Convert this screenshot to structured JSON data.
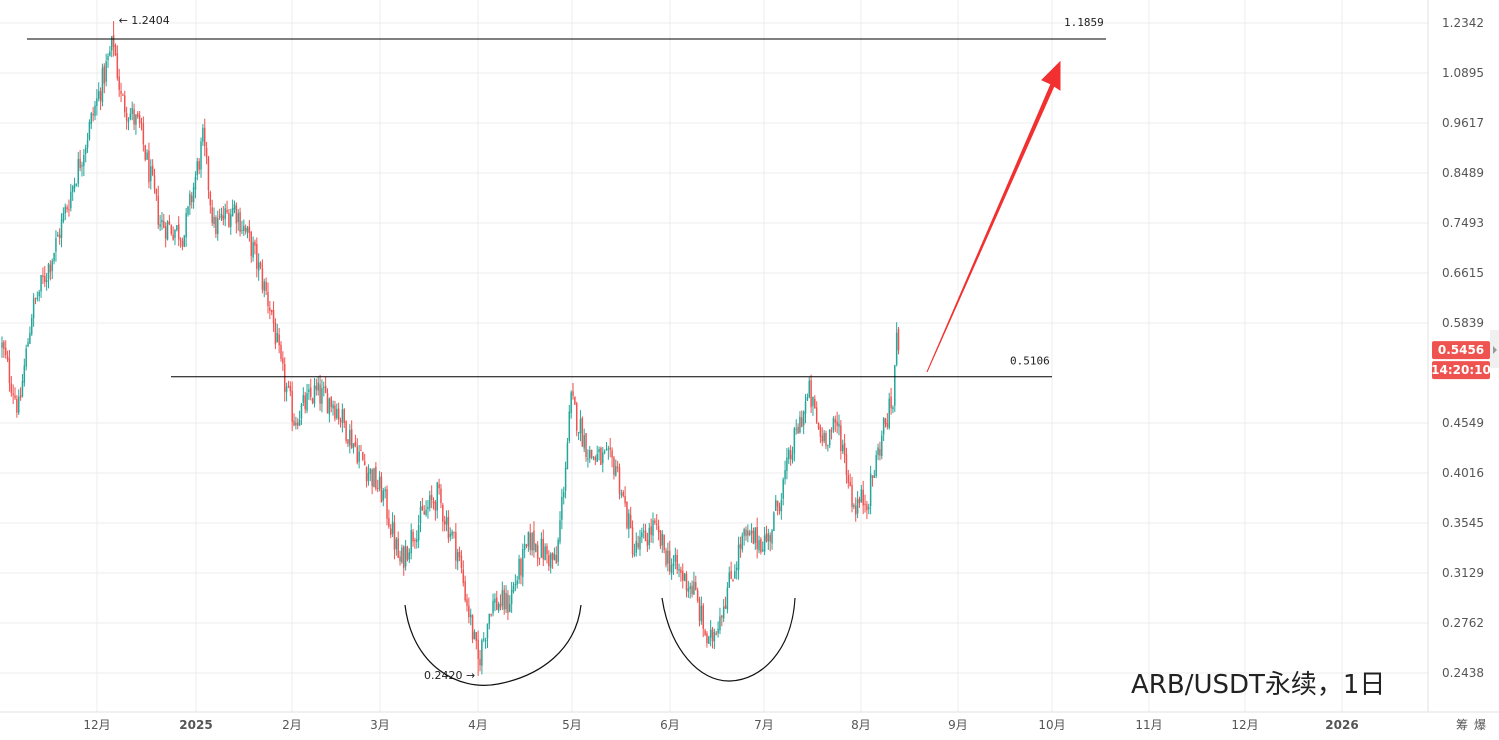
{
  "chart_data": {
    "type": "candlestick",
    "title": "ARB/USDT永续，1日",
    "y_axis": {
      "scale": "log",
      "range": [
        0.225,
        1.29
      ],
      "tick_labels": [
        "1.2342",
        "1.0895",
        "0.9617",
        "0.8489",
        "0.7493",
        "0.6615",
        "0.5839",
        "0.4549",
        "0.4016",
        "0.3545",
        "0.3129",
        "0.2762",
        "0.2438"
      ]
    },
    "x_axis": {
      "tick_labels": [
        "12月",
        "2025",
        "2月",
        "3月",
        "4月",
        "5月",
        "6月",
        "7月",
        "8月",
        "9月",
        "10月",
        "11月",
        "12月",
        "2026",
        "筹",
        "爆"
      ]
    },
    "grid": true,
    "current_price": "0.5456",
    "countdown": "14:20:10",
    "colors": {
      "up": "#26a69a",
      "down": "#ef5350",
      "line": "#000000",
      "arrow": "#f23030",
      "badge": "#ef5350"
    },
    "anchors": [
      {
        "i": 0,
        "v": 0.55
      },
      {
        "i": 9,
        "v": 0.47
      },
      {
        "i": 16,
        "v": 0.6
      },
      {
        "i": 28,
        "v": 0.7
      },
      {
        "i": 45,
        "v": 0.92
      },
      {
        "i": 60,
        "v": 1.18
      },
      {
        "i": 64,
        "v": 1.02
      },
      {
        "i": 74,
        "v": 0.95
      },
      {
        "i": 85,
        "v": 0.75
      },
      {
        "i": 98,
        "v": 0.73
      },
      {
        "i": 108,
        "v": 0.92
      },
      {
        "i": 114,
        "v": 0.74
      },
      {
        "i": 125,
        "v": 0.78
      },
      {
        "i": 135,
        "v": 0.7
      },
      {
        "i": 145,
        "v": 0.6
      },
      {
        "i": 150,
        "v": 0.52
      },
      {
        "i": 157,
        "v": 0.46
      },
      {
        "i": 168,
        "v": 0.49
      },
      {
        "i": 178,
        "v": 0.48
      },
      {
        "i": 195,
        "v": 0.41
      },
      {
        "i": 205,
        "v": 0.38
      },
      {
        "i": 214,
        "v": 0.32
      },
      {
        "i": 222,
        "v": 0.35
      },
      {
        "i": 234,
        "v": 0.38
      },
      {
        "i": 245,
        "v": 0.33
      },
      {
        "i": 256,
        "v": 0.25
      },
      {
        "i": 263,
        "v": 0.29
      },
      {
        "i": 272,
        "v": 0.29
      },
      {
        "i": 284,
        "v": 0.34
      },
      {
        "i": 298,
        "v": 0.32
      },
      {
        "i": 306,
        "v": 0.48
      },
      {
        "i": 316,
        "v": 0.42
      },
      {
        "i": 330,
        "v": 0.41
      },
      {
        "i": 340,
        "v": 0.33
      },
      {
        "i": 350,
        "v": 0.35
      },
      {
        "i": 360,
        "v": 0.32
      },
      {
        "i": 372,
        "v": 0.3
      },
      {
        "i": 380,
        "v": 0.26
      },
      {
        "i": 390,
        "v": 0.3
      },
      {
        "i": 398,
        "v": 0.34
      },
      {
        "i": 412,
        "v": 0.34
      },
      {
        "i": 428,
        "v": 0.45
      },
      {
        "i": 434,
        "v": 0.49
      },
      {
        "i": 440,
        "v": 0.44
      },
      {
        "i": 450,
        "v": 0.45
      },
      {
        "i": 458,
        "v": 0.37
      },
      {
        "i": 466,
        "v": 0.38
      },
      {
        "i": 474,
        "v": 0.45
      },
      {
        "i": 479,
        "v": 0.48
      },
      {
        "i": 481,
        "v": 0.57
      },
      {
        "i": 482,
        "v": 0.5456
      }
    ],
    "annotations": [
      {
        "label": "1.2404",
        "type": "high",
        "value": 1.2404
      },
      {
        "label": "0.2420",
        "type": "low",
        "value": 0.242
      },
      {
        "label": "1.1859",
        "type": "horizontal-line",
        "value": 1.1859
      },
      {
        "label": "0.5106",
        "type": "horizontal-line",
        "value": 0.5106
      }
    ]
  }
}
